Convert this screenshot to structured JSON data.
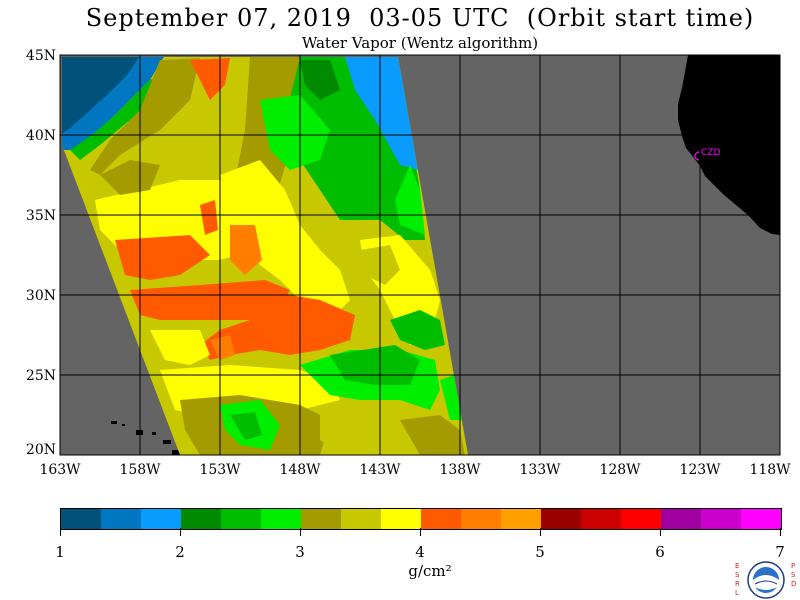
{
  "title": "September 07, 2019  03-05 UTC  (Orbit start time)",
  "subtitle": "Water Vapor (Wentz algorithm)",
  "lat_labels": [
    "45N",
    "40N",
    "35N",
    "30N",
    "25N",
    "20N"
  ],
  "lon_labels": [
    "163W",
    "158W",
    "153W",
    "148W",
    "143W",
    "138W",
    "133W",
    "128W",
    "123W",
    "118W"
  ],
  "station_label": "CZD",
  "colorbar": {
    "ticks": [
      "1",
      "2",
      "3",
      "4",
      "5",
      "6",
      "7"
    ],
    "units": "g/cm²",
    "colors": [
      "#00527a",
      "#0077c0",
      "#0a9bff",
      "#008a00",
      "#00bd00",
      "#00ee00",
      "#a39b00",
      "#c8c800",
      "#ffff00",
      "#ff5a00",
      "#ff7e00",
      "#ffa000",
      "#9a0000",
      "#cc0000",
      "#ff0000",
      "#a000a0",
      "#cc00cc",
      "#ff00ff"
    ]
  },
  "colors": {
    "land": "#000000",
    "no_data": "#646464",
    "grid": "#000000",
    "station": "#ff00ff"
  },
  "logo": {
    "left_text": "ESRL",
    "right_text": "PSD",
    "center_text": "NOAA"
  }
}
